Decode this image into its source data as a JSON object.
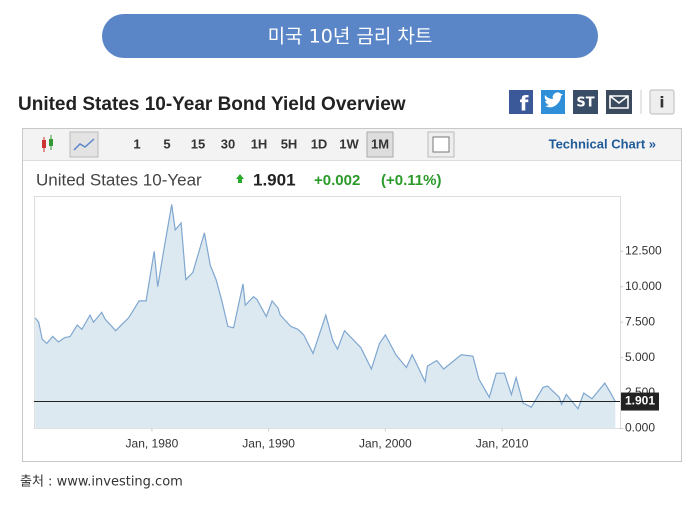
{
  "banner": "미국 10년 금리 차트",
  "page_title": "United States 10-Year Bond Yield Overview",
  "share_icons": {
    "stocktwits": "ST"
  },
  "toolbar": {
    "intervals": [
      "1",
      "5",
      "15",
      "30",
      "1H",
      "5H",
      "1D",
      "1W",
      "1M"
    ],
    "active": "1M",
    "technical": "Technical Chart »"
  },
  "quote": {
    "name": "United States 10-Year",
    "price": "1.901",
    "change": "+0.002",
    "change_pct": "(+0.11%)"
  },
  "source": "출처 : www.investing.com",
  "chart_data": {
    "type": "area",
    "color": "#7fa7d0",
    "fill": "#dde9f0",
    "x": [
      1970,
      1970.3,
      1970.6,
      1971,
      1971.5,
      1972,
      1972.5,
      1973,
      1973.6,
      1974,
      1974.7,
      1975,
      1975.7,
      1976,
      1976.9,
      1977.5,
      1978,
      1978.9,
      1979.5,
      1980.2,
      1980.5,
      1981,
      1981.7,
      1982,
      1982.5,
      1982.9,
      1983.5,
      1984.5,
      1985,
      1985.5,
      1986,
      1986.5,
      1987,
      1987.8,
      1988,
      1988.7,
      1989,
      1989.8,
      1990.3,
      1990.8,
      1991,
      1991.9,
      1992.5,
      1993,
      1993.8,
      1994.9,
      1995.5,
      1995.9,
      1996.5,
      1997.9,
      1998.8,
      1999.5,
      2000,
      2000.9,
      2001.8,
      2002.3,
      2003.4,
      2003.6,
      2004.4,
      2005,
      2006.5,
      2007.5,
      2008,
      2008.9,
      2009.5,
      2010.2,
      2010.8,
      2011.2,
      2011.8,
      2012.5,
      2013.5,
      2013.9,
      2014.9,
      2015.1,
      2015.5,
      2016.5,
      2017,
      2017.7,
      2018.8,
      2019.3,
      2019.7
    ],
    "values": [
      7.8,
      7.5,
      6.3,
      6.0,
      6.5,
      6.1,
      6.4,
      6.5,
      7.3,
      7.0,
      8.0,
      7.5,
      8.2,
      7.7,
      6.9,
      7.4,
      7.8,
      9.0,
      9.0,
      12.5,
      10.0,
      12.5,
      15.8,
      14.0,
      14.5,
      10.5,
      11.0,
      13.8,
      11.5,
      10.5,
      9.0,
      7.2,
      7.1,
      10.2,
      8.7,
      9.3,
      9.1,
      7.9,
      9.0,
      8.5,
      8.0,
      7.2,
      7.0,
      6.6,
      5.3,
      8.0,
      6.2,
      5.6,
      6.9,
      5.7,
      4.2,
      6.0,
      6.6,
      5.2,
      4.3,
      5.2,
      3.3,
      4.4,
      4.8,
      4.2,
      5.2,
      5.1,
      3.5,
      2.2,
      3.9,
      3.9,
      2.4,
      3.6,
      1.8,
      1.5,
      2.9,
      3.0,
      2.2,
      1.7,
      2.4,
      1.4,
      2.5,
      2.1,
      3.2,
      2.5,
      1.901
    ],
    "xlim": [
      1969.9,
      2020.1
    ],
    "ylim": [
      0,
      16.4
    ],
    "xticks": [
      {
        "value": 1980,
        "label": "Jan, 1980"
      },
      {
        "value": 1990,
        "label": "Jan, 1990"
      },
      {
        "value": 2000,
        "label": "Jan, 2000"
      },
      {
        "value": 2010,
        "label": "Jan, 2010"
      }
    ],
    "yticks": [
      {
        "value": 0,
        "label": "0.000"
      },
      {
        "value": 2.5,
        "label": "2.500"
      },
      {
        "value": 5,
        "label": "5.000"
      },
      {
        "value": 7.5,
        "label": "7.500"
      },
      {
        "value": 10,
        "label": "10.000"
      },
      {
        "value": 12.5,
        "label": "12.500"
      }
    ],
    "grid": false
  }
}
